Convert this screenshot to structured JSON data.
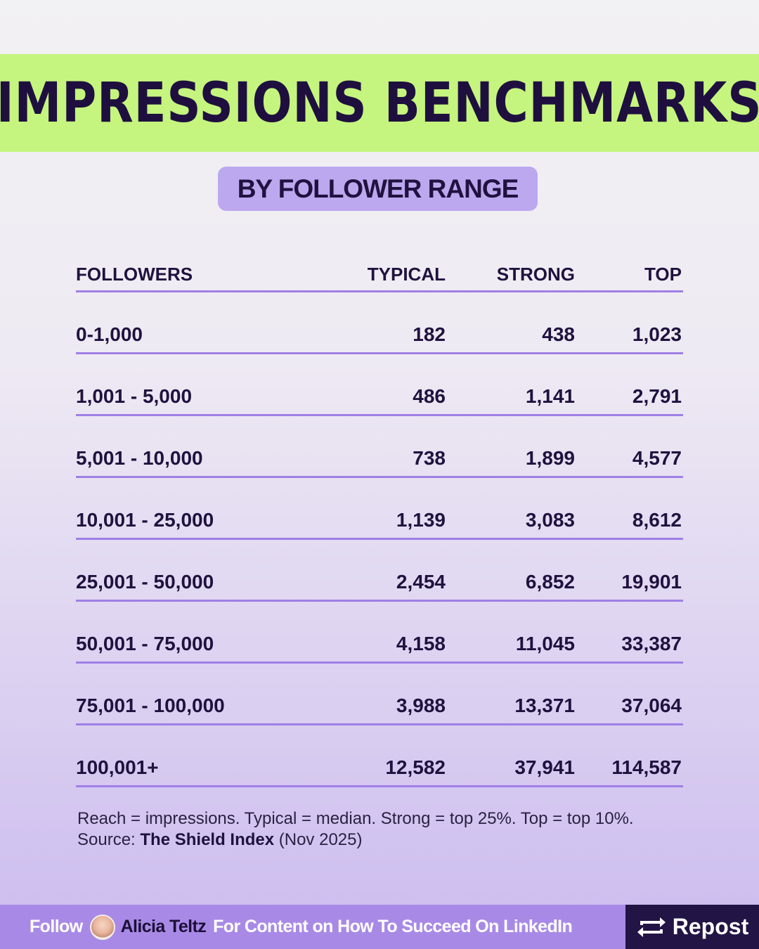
{
  "title": "IMPRESSIONS BENCHMARKS",
  "subtitle": "BY FOLLOWER RANGE",
  "table": {
    "headers": [
      "FOLLOWERS",
      "TYPICAL",
      "STRONG",
      "TOP"
    ],
    "rows": [
      [
        "0-1,000",
        "182",
        "438",
        "1,023"
      ],
      [
        "1,001 - 5,000",
        "486",
        "1,141",
        "2,791"
      ],
      [
        "5,001 - 10,000",
        "738",
        "1,899",
        "4,577"
      ],
      [
        "10,001 - 25,000",
        "1,139",
        "3,083",
        "8,612"
      ],
      [
        "25,001 - 50,000",
        "2,454",
        "6,852",
        "19,901"
      ],
      [
        "50,001 - 75,000",
        "4,158",
        "11,045",
        "33,387"
      ],
      [
        "75,001 - 100,000",
        "3,988",
        "13,371",
        "37,064"
      ],
      [
        "100,001+",
        "12,582",
        "37,941",
        "114,587"
      ]
    ]
  },
  "notes": {
    "line1": "Reach = impressions. Typical = median. Strong = top 25%. Top = top 10%.",
    "source_prefix": "Source: ",
    "source_name": "The Shield Index",
    "source_suffix": " (Nov 2025)"
  },
  "footer": {
    "follow": "Follow",
    "name": "Alicia Teltz",
    "tagline": "For Content on How To Succeed On LinkedIn",
    "repost": "Repost",
    "repost_icon": "repost-icon"
  },
  "colors": {
    "banner": "#c5f57e",
    "pill": "#bba8ef",
    "divider": "#9f7fe6",
    "footer": "#a88ae6",
    "repost_bg": "#221545",
    "text_dark": "#20123f"
  }
}
